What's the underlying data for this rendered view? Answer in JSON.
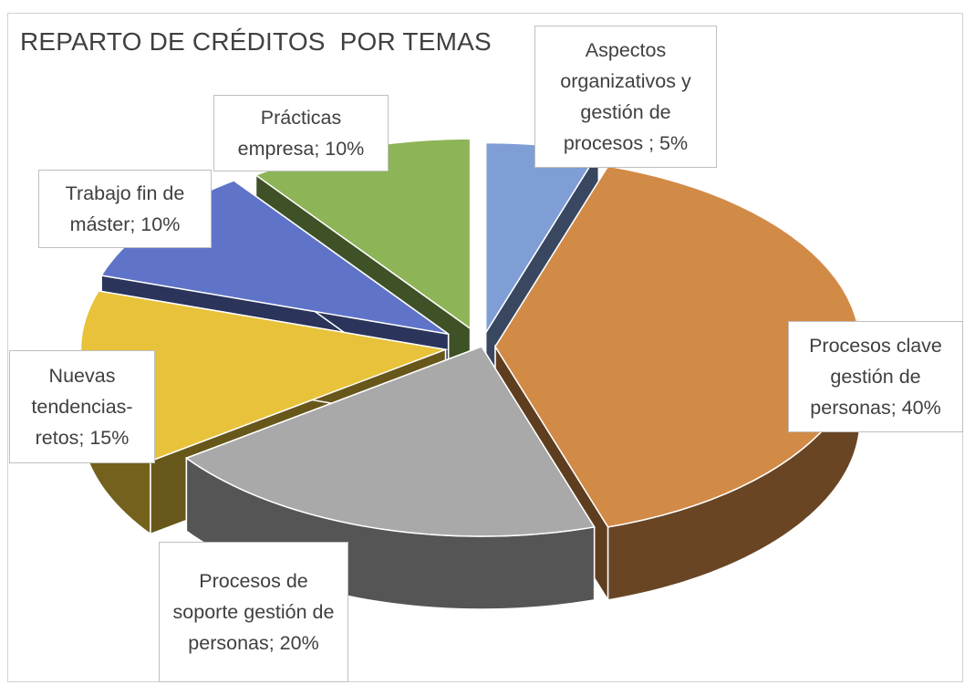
{
  "chart_data": {
    "type": "pie",
    "variant": "3d-exploded",
    "title": "REPARTO DE CRÉDITOS  POR TEMAS",
    "categories": [
      "Aspectos organizativos y gestión de procesos",
      "Procesos clave gestión de personas",
      "Procesos de soporte gestión de personas",
      "Nuevas tendencias-retos",
      "Trabajo fin de máster",
      "Prácticas empresa"
    ],
    "values": [
      5,
      40,
      20,
      15,
      10,
      10
    ],
    "data_labels": [
      "Aspectos organizativos y gestión de procesos ; 5%",
      "Procesos clave gestión de personas; 40%",
      "Procesos de soporte gestión de personas; 20%",
      "Nuevas tendencias-retos; 15%",
      "Trabajo fin de máster; 10%",
      "Prácticas empresa; 10%"
    ],
    "colors": [
      "#7f9ed6",
      "#d28a47",
      "#a9a9a9",
      "#e8c23a",
      "#5f74c8",
      "#8db457"
    ],
    "legend": "none"
  }
}
